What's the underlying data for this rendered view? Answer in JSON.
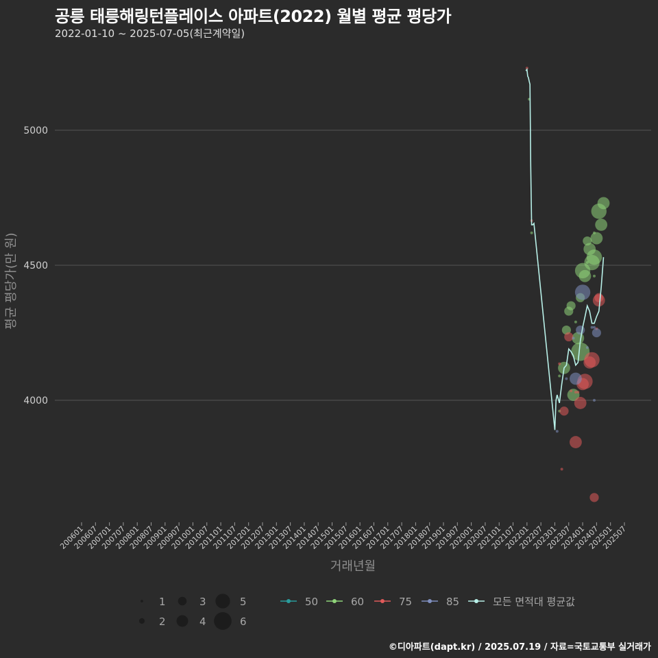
{
  "title": "공릉 태릉해링턴플레이스 아파트(2022) 월별 평균 평당가",
  "subtitle": "2022-01-10 ~ 2025-07-05(최근계약일)",
  "footer": "©디아파트(dapt.kr) / 2025.07.19 / 자료=국토교통부 실거래가",
  "colors": {
    "background": "#2b2b2b",
    "grid": "#555555",
    "s50": "#2a9d9d",
    "s60": "#8fd47a",
    "s75": "#e05a5a",
    "s85": "#7f8fbf",
    "avg": "#b8f0e8"
  },
  "chart_data": {
    "type": "scatter",
    "xlabel": "거래년월",
    "ylabel": "평균 평당가(만 원)",
    "x_ticks": [
      "200601",
      "200607",
      "200701",
      "200707",
      "200801",
      "200807",
      "200901",
      "200907",
      "201001",
      "201007",
      "201101",
      "201107",
      "201201",
      "201207",
      "201301",
      "201307",
      "201401",
      "201407",
      "201501",
      "201507",
      "201601",
      "201607",
      "201701",
      "201707",
      "201801",
      "201807",
      "201901",
      "201907",
      "202001",
      "202007",
      "202101",
      "202107",
      "202201",
      "202207",
      "202301",
      "202307",
      "202401",
      "202407",
      "202501",
      "202507"
    ],
    "y_ticks": [
      4000,
      4500,
      5000
    ],
    "ylim": [
      3560,
      5250
    ],
    "grid": true,
    "legend_position": "bottom",
    "size_legend": [
      1,
      2,
      3,
      4,
      5,
      6
    ],
    "series": [
      {
        "name": "50",
        "color_key": "s50",
        "points": []
      },
      {
        "name": "60",
        "color_key": "s60",
        "points": [
          {
            "x": "2022-02",
            "y": 5115,
            "n": 1
          },
          {
            "x": "2022-03",
            "y": 4620,
            "n": 1
          },
          {
            "x": "2023-03",
            "y": 4090,
            "n": 1
          },
          {
            "x": "2023-03",
            "y": 3960,
            "n": 1
          },
          {
            "x": "2023-05",
            "y": 4120,
            "n": 4
          },
          {
            "x": "2023-06",
            "y": 4260,
            "n": 3
          },
          {
            "x": "2023-07",
            "y": 4330,
            "n": 3
          },
          {
            "x": "2023-08",
            "y": 4350,
            "n": 3
          },
          {
            "x": "2023-09",
            "y": 4020,
            "n": 4
          },
          {
            "x": "2023-10",
            "y": 4290,
            "n": 1
          },
          {
            "x": "2023-11",
            "y": 4230,
            "n": 4
          },
          {
            "x": "2023-12",
            "y": 4380,
            "n": 3
          },
          {
            "x": "2023-12",
            "y": 4180,
            "n": 6
          },
          {
            "x": "2024-01",
            "y": 4480,
            "n": 5
          },
          {
            "x": "2024-02",
            "y": 4460,
            "n": 4
          },
          {
            "x": "2024-03",
            "y": 4590,
            "n": 3
          },
          {
            "x": "2024-03",
            "y": 4510,
            "n": 1
          },
          {
            "x": "2024-04",
            "y": 4560,
            "n": 4
          },
          {
            "x": "2024-05",
            "y": 4510,
            "n": 5
          },
          {
            "x": "2024-06",
            "y": 4530,
            "n": 5
          },
          {
            "x": "2024-06",
            "y": 4460,
            "n": 1
          },
          {
            "x": "2024-06",
            "y": 4620,
            "n": 1
          },
          {
            "x": "2024-07",
            "y": 4600,
            "n": 4
          },
          {
            "x": "2024-08",
            "y": 4700,
            "n": 5
          },
          {
            "x": "2024-09",
            "y": 4650,
            "n": 4
          },
          {
            "x": "2024-10",
            "y": 4730,
            "n": 4
          }
        ]
      },
      {
        "name": "75",
        "color_key": "s75",
        "points": [
          {
            "x": "2022-01",
            "y": 5230,
            "n": 1
          },
          {
            "x": "2022-03",
            "y": 4665,
            "n": 1
          },
          {
            "x": "2023-03",
            "y": 4135,
            "n": 1
          },
          {
            "x": "2023-04",
            "y": 3745,
            "n": 1
          },
          {
            "x": "2023-05",
            "y": 3960,
            "n": 3
          },
          {
            "x": "2023-07",
            "y": 4235,
            "n": 3
          },
          {
            "x": "2023-08",
            "y": 4035,
            "n": 1
          },
          {
            "x": "2023-10",
            "y": 3845,
            "n": 4
          },
          {
            "x": "2023-10",
            "y": 4030,
            "n": 1
          },
          {
            "x": "2023-11",
            "y": 4030,
            "n": 1
          },
          {
            "x": "2023-12",
            "y": 3990,
            "n": 4
          },
          {
            "x": "2024-01",
            "y": 4060,
            "n": 4
          },
          {
            "x": "2024-02",
            "y": 4070,
            "n": 5
          },
          {
            "x": "2024-04",
            "y": 4140,
            "n": 4
          },
          {
            "x": "2024-05",
            "y": 4150,
            "n": 5
          },
          {
            "x": "2024-06",
            "y": 3640,
            "n": 3
          },
          {
            "x": "2024-07",
            "y": 4265,
            "n": 1
          },
          {
            "x": "2024-08",
            "y": 4370,
            "n": 4
          },
          {
            "x": "2024-08",
            "y": 4380,
            "n": 3
          }
        ]
      },
      {
        "name": "85",
        "color_key": "s85",
        "points": [
          {
            "x": "2023-02",
            "y": 3885,
            "n": 1
          },
          {
            "x": "2023-06",
            "y": 4080,
            "n": 1
          },
          {
            "x": "2023-09",
            "y": 4230,
            "n": 1
          },
          {
            "x": "2023-10",
            "y": 4080,
            "n": 4
          },
          {
            "x": "2023-12",
            "y": 4260,
            "n": 3
          },
          {
            "x": "2024-01",
            "y": 4400,
            "n": 5
          },
          {
            "x": "2024-03",
            "y": 4195,
            "n": 1
          },
          {
            "x": "2024-05",
            "y": 4270,
            "n": 1
          },
          {
            "x": "2024-06",
            "y": 4270,
            "n": 1
          },
          {
            "x": "2024-06",
            "y": 4000,
            "n": 1
          },
          {
            "x": "2024-07",
            "y": 4250,
            "n": 3
          }
        ]
      }
    ],
    "average_line": {
      "name": "모든 면적대 평균값",
      "color_key": "avg",
      "points": [
        {
          "x": "2021-12.5",
          "y": 5220
        },
        {
          "x": "2022-01",
          "y": 5225
        },
        {
          "x": "2022-01.3",
          "y": 5200
        },
        {
          "x": "2022-01.6",
          "y": 5195
        },
        {
          "x": "2022-02",
          "y": 5180
        },
        {
          "x": "2022-02.3",
          "y": 5170
        },
        {
          "x": "2022-02.6",
          "y": 4870
        },
        {
          "x": "2022-03",
          "y": 4650
        },
        {
          "x": "2022-03.5",
          "y": 4650
        },
        {
          "x": "2022-04",
          "y": 4655
        },
        {
          "x": "2023-01",
          "y": 3890
        },
        {
          "x": "2023-01.5",
          "y": 4000
        },
        {
          "x": "2023-02",
          "y": 4020
        },
        {
          "x": "2023-03",
          "y": 3990
        },
        {
          "x": "2023-04",
          "y": 4060
        },
        {
          "x": "2023-05",
          "y": 4120
        },
        {
          "x": "2023-06",
          "y": 4130
        },
        {
          "x": "2023-07",
          "y": 4190
        },
        {
          "x": "2023-08",
          "y": 4180
        },
        {
          "x": "2023-09",
          "y": 4165
        },
        {
          "x": "2023-10",
          "y": 4130
        },
        {
          "x": "2023-11",
          "y": 4140
        },
        {
          "x": "2023-12",
          "y": 4220
        },
        {
          "x": "2024-01",
          "y": 4270
        },
        {
          "x": "2024-02",
          "y": 4310
        },
        {
          "x": "2024-03",
          "y": 4350
        },
        {
          "x": "2024-04",
          "y": 4330
        },
        {
          "x": "2024-05",
          "y": 4285
        },
        {
          "x": "2024-06",
          "y": 4285
        },
        {
          "x": "2024-07",
          "y": 4310
        },
        {
          "x": "2024-08",
          "y": 4330
        },
        {
          "x": "2024-09",
          "y": 4420
        },
        {
          "x": "2024-10",
          "y": 4530
        }
      ]
    }
  }
}
